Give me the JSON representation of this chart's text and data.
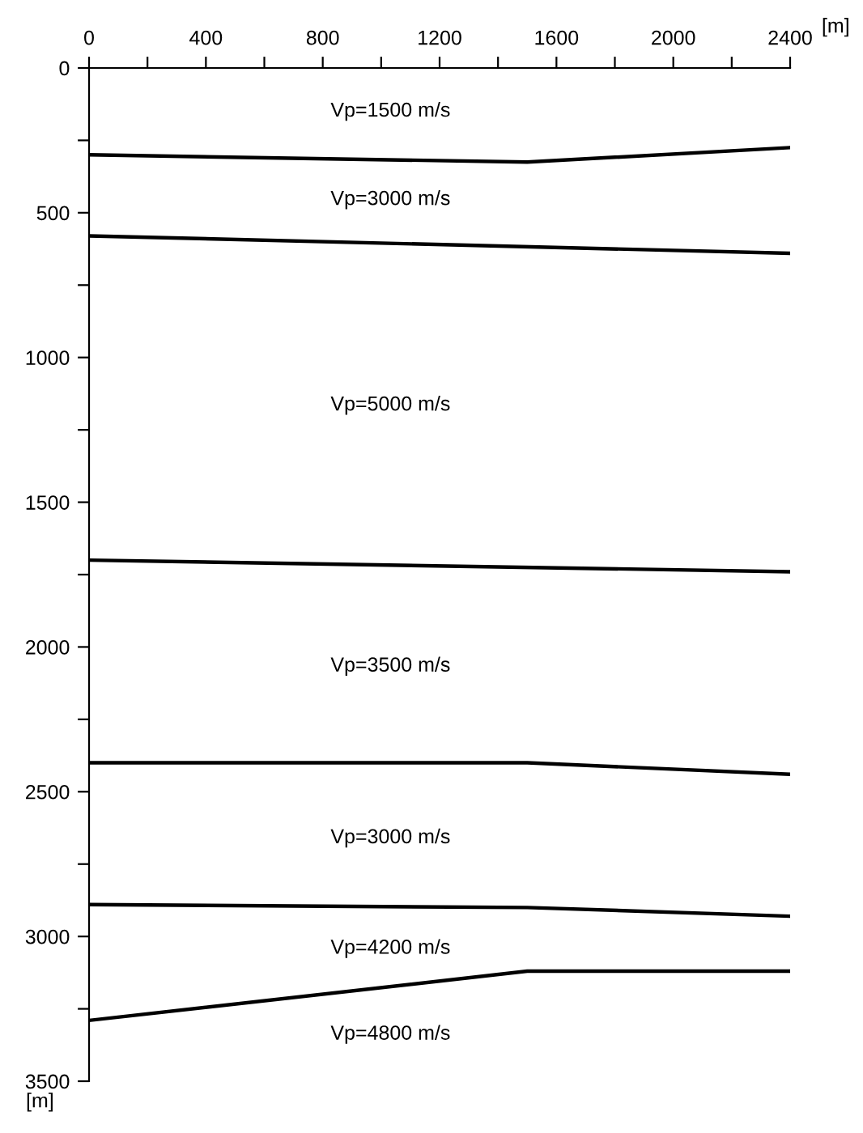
{
  "chart_data": {
    "type": "line",
    "xlabel": "[m]",
    "ylabel": "[m]",
    "xlim": [
      0,
      2400
    ],
    "ylim": [
      3500,
      0
    ],
    "xticks": [
      0,
      {
        "value": 200,
        "label": null
      },
      400,
      {
        "value": 600,
        "label": null
      },
      800,
      {
        "value": 1000,
        "label": null
      },
      1200,
      {
        "value": 1400,
        "label": null
      },
      1600,
      {
        "value": 1800,
        "label": null
      },
      2000,
      {
        "value": 2200,
        "label": null
      },
      2400
    ],
    "yticks": [
      0,
      {
        "value": 250,
        "label": null
      },
      500,
      {
        "value": 750,
        "label": null
      },
      1000,
      {
        "value": 1250,
        "label": null
      },
      1500,
      {
        "value": 1750,
        "label": null
      },
      2000,
      {
        "value": 2250,
        "label": null
      },
      2500,
      {
        "value": 2750,
        "label": null
      },
      3000,
      {
        "value": 3250,
        "label": null
      },
      3500
    ],
    "grid": false,
    "marker": "none",
    "line_style": "solid",
    "series": [
      {
        "color": "#000000",
        "x": [
          0,
          1500,
          2400
        ],
        "values": [
          300,
          325,
          275
        ]
      },
      {
        "color": "#000000",
        "x": [
          0,
          2400
        ],
        "values": [
          580,
          640
        ]
      },
      {
        "color": "#000000",
        "x": [
          0,
          2400
        ],
        "values": [
          1700,
          1740
        ]
      },
      {
        "color": "#000000",
        "x": [
          0,
          1500,
          2400
        ],
        "values": [
          2400,
          2400,
          2440
        ]
      },
      {
        "color": "#000000",
        "x": [
          0,
          1500,
          2400
        ],
        "values": [
          2890,
          2900,
          2930
        ]
      },
      {
        "color": "#000000",
        "x": [
          0,
          1500,
          2400
        ],
        "values": [
          3290,
          3120,
          3120
        ]
      }
    ],
    "annotations": [
      "Vp=1500 m/s",
      "Vp=3000 m/s",
      "Vp=5000 m/s",
      "Vp=3500 m/s",
      "Vp=3000 m/s",
      "Vp=4200 m/s",
      "Vp=4800 m/s"
    ]
  }
}
